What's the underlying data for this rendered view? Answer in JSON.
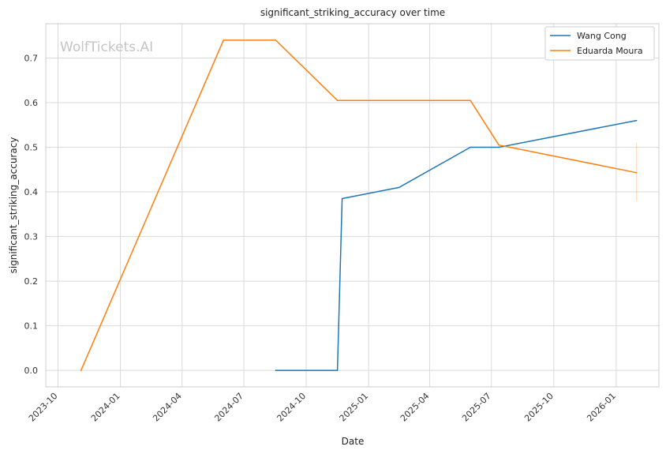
{
  "watermark": "WolfTickets.AI",
  "chart_data": {
    "type": "line",
    "title": "significant_striking_accuracy over time",
    "xlabel": "Date",
    "ylabel": "significant_striking_accuracy",
    "x_ticks": [
      "2023-10",
      "2024-01",
      "2024-04",
      "2024-07",
      "2024-10",
      "2025-01",
      "2025-04",
      "2025-07",
      "2025-10",
      "2026-01"
    ],
    "y_ticks": [
      "0.0",
      "0.1",
      "0.2",
      "0.3",
      "0.4",
      "0.5",
      "0.6",
      "0.7"
    ],
    "xlim": [
      "2023-09-13",
      "2026-03-05"
    ],
    "ylim": [
      -0.037,
      0.777
    ],
    "grid": true,
    "legend_position": "top-right",
    "series": [
      {
        "name": "Wang Cong",
        "color": "#1f77b4",
        "points": [
          {
            "x": "2024-08-17",
            "y": 0.0
          },
          {
            "x": "2024-11-16",
            "y": 0.0
          },
          {
            "x": "2024-11-23",
            "y": 0.385
          },
          {
            "x": "2025-02-15",
            "y": 0.41
          },
          {
            "x": "2025-05-31",
            "y": 0.5
          },
          {
            "x": "2025-07-12",
            "y": 0.5
          },
          {
            "x": "2026-01-31",
            "y": 0.56
          }
        ]
      },
      {
        "name": "Eduarda Moura",
        "color": "#ff7f0e",
        "points": [
          {
            "x": "2023-11-04",
            "y": 0.0
          },
          {
            "x": "2024-06-01",
            "y": 0.74
          },
          {
            "x": "2024-08-17",
            "y": 0.74
          },
          {
            "x": "2024-11-16",
            "y": 0.605
          },
          {
            "x": "2025-05-31",
            "y": 0.605
          },
          {
            "x": "2025-07-12",
            "y": 0.505
          },
          {
            "x": "2026-01-31",
            "y": 0.443
          }
        ],
        "error_bar": {
          "x": "2026-01-31",
          "low": 0.38,
          "high": 0.51
        }
      }
    ]
  }
}
